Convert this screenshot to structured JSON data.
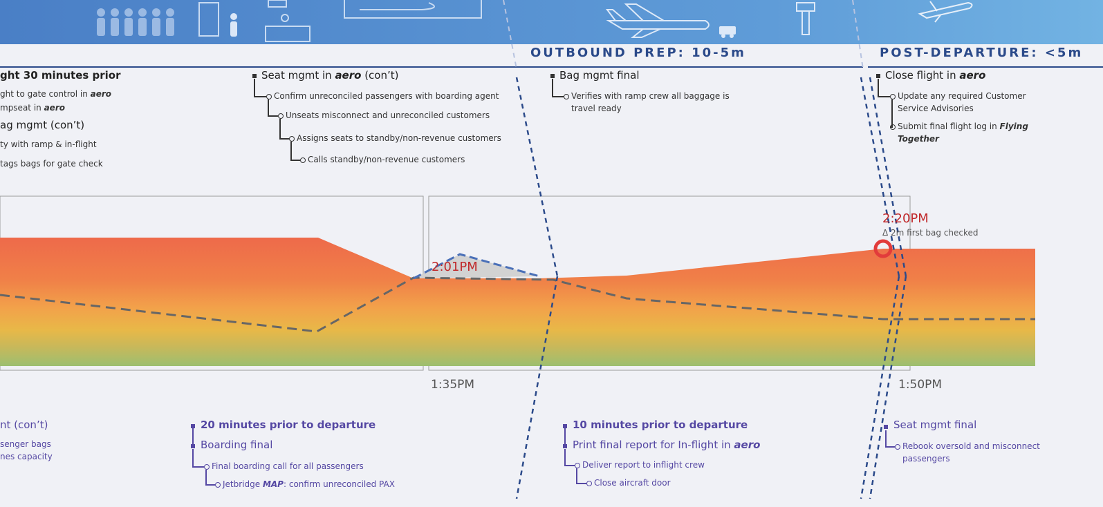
{
  "colors": {
    "accent": "#2b4a8a",
    "alert": "#c0282a",
    "bottom_text": "#5548a3"
  },
  "hero": {
    "icons": [
      "passengers-icon",
      "security-gate-icon",
      "person-icon",
      "checkin-desk-icon",
      "boarding-pass-icon",
      "airplane-icon",
      "baggage-cart-icon",
      "control-tower-icon",
      "departing-airplane-icon"
    ]
  },
  "phases": {
    "outbound_prep": "OUTBOUND PREP: 10-5m",
    "post_departure": "POST-DEPARTURE: <5m"
  },
  "top": {
    "col1": {
      "h1": "ght 30 minutes prior",
      "s1_pre": "ght to gate control in ",
      "s1_em": "aero",
      "s2_pre": "mpseat in ",
      "s2_em": "aero",
      "h2": "ag mgmt (con’t)",
      "s3": "ty with ramp & in-flight",
      "s4": "tags bags for gate check"
    },
    "col2": {
      "h_pre": "Seat mgmt in ",
      "h_em": "aero",
      "h_post": " (con’t)",
      "items": [
        "Confirm unreconciled passengers with boarding agent",
        "Unseats misconnect and unreconciled customers",
        "Assigns seats to standby/non-revenue customers",
        "Calls standby/non-revenue customers"
      ]
    },
    "col3": {
      "h": "Bag mgmt final",
      "line1": "Verifies with ramp crew all baggage is",
      "line2": "travel ready"
    },
    "col4": {
      "h_pre": "Close flight in ",
      "h_em": "aero",
      "i1_line1": "Update any required Customer",
      "i1_line2": "Service Advisories",
      "i2_pre": "Submit final flight log in ",
      "i2_em": "Flying",
      "i2_em2": "Together"
    }
  },
  "chart": {
    "annotation1_time": "2:01PM",
    "annotation2_time": "2:20PM",
    "annotation2_note": "Δ 2m first bag checked",
    "tick1": "1:35PM",
    "tick2": "1:50PM"
  },
  "bottom": {
    "col1": {
      "h": "nt (con’t)",
      "line1": "senger bags",
      "line2": "nes capacity"
    },
    "col2": {
      "h1": "20 minutes prior to departure",
      "h2": "Boarding final",
      "i1": "Final boarding call for all passengers",
      "i2_pre": "Jetbridge ",
      "i2_em": "MAP",
      "i2_post": ": confirm unreconciled PAX"
    },
    "col3": {
      "h1": "10 minutes prior to departure",
      "h2_pre": "Print final report for In-flight in ",
      "h2_em": "aero",
      "i1": "Deliver report to inflight crew",
      "i2": "Close aircraft door"
    },
    "col4": {
      "h": "Seat mgmt final",
      "line1": "Rebook oversold and misconnect",
      "line2": "passengers"
    }
  }
}
